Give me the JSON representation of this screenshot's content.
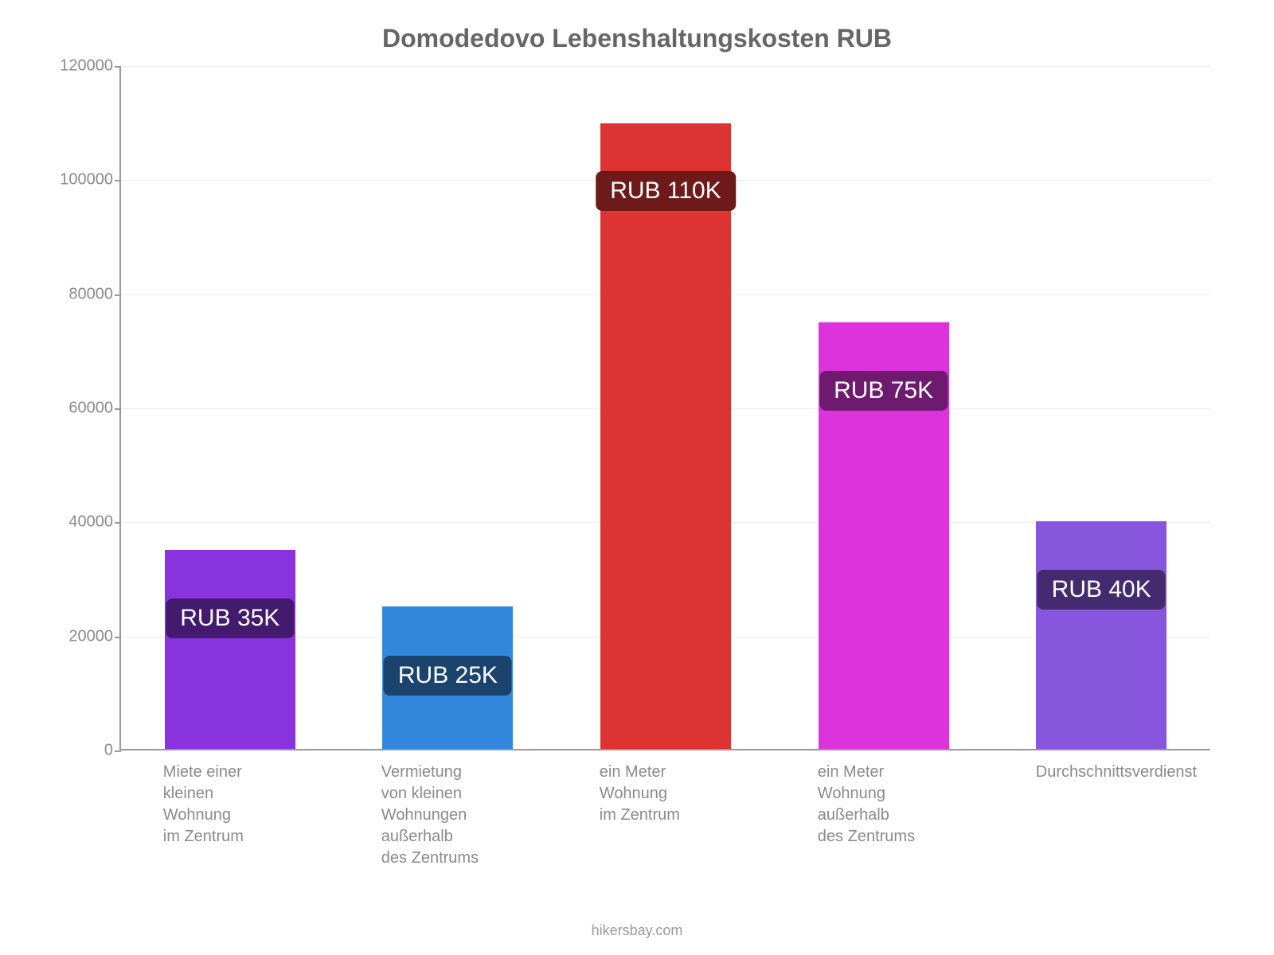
{
  "chart": {
    "type": "bar",
    "title": "Domodedovo Lebenshaltungskosten RUB",
    "title_fontsize": 32,
    "title_color": "#666666",
    "background_color": "#ffffff",
    "axis_color": "#999999",
    "grid_color": "#ececec",
    "tick_color": "#999999",
    "y_label_color": "#8a8a8a",
    "y_label_fontsize": 20,
    "x_label_color": "#8a8a8a",
    "x_label_fontsize": 20,
    "badge_fontsize": 30,
    "attribution": "hikersbay.com",
    "attribution_color": "#9a9a9a",
    "attribution_fontsize": 18,
    "ylim": [
      0,
      120000
    ],
    "ytick_step": 20000,
    "y_ticks": [
      0,
      20000,
      40000,
      60000,
      80000,
      100000,
      120000
    ],
    "y_tick_labels": [
      "0",
      "20000",
      "40000",
      "60000",
      "80000",
      "100000",
      "120000"
    ],
    "bar_gap_pct": 8,
    "categories": [
      "Miete einer kleinen\nWohnung\nim Zentrum",
      "Vermietung\nvon kleinen\nWohnungen\naußerhalb\ndes Zentrums",
      "ein Meter Wohnung\nim Zentrum",
      "ein Meter Wohnung\naußerhalb\ndes Zentrums",
      "Durchschnittsverdienst"
    ],
    "values": [
      35000,
      25000,
      110000,
      75000,
      40000
    ],
    "value_labels": [
      "RUB 35K",
      "RUB 25K",
      "RUB 110K",
      "RUB 75K",
      "RUB 40K"
    ],
    "bar_colors": [
      "#8833dd",
      "#3388dd",
      "#dd3333",
      "#dd33dd",
      "#8855dd"
    ],
    "badge_bg_colors": [
      "#441a6e",
      "#1a446e",
      "#6e1a1a",
      "#6e1a6e",
      "#442a6e"
    ]
  }
}
